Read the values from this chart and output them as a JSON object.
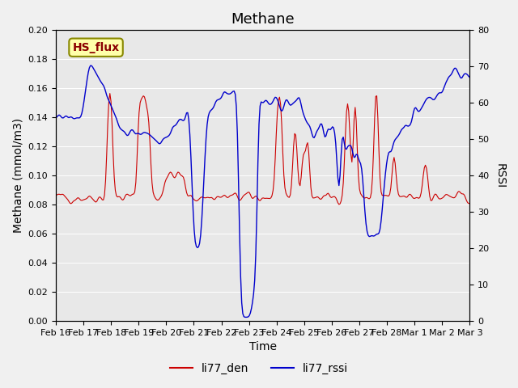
{
  "title": "Methane",
  "xlabel": "Time",
  "ylabel_left": "Methane (mmol/m3)",
  "ylabel_right": "RSSI",
  "ylim_left": [
    0.0,
    0.2
  ],
  "ylim_right": [
    0,
    80
  ],
  "yticks_left": [
    0.0,
    0.02,
    0.04,
    0.06,
    0.08,
    0.1,
    0.12,
    0.14,
    0.16,
    0.18,
    0.2
  ],
  "yticks_right": [
    0,
    10,
    20,
    30,
    40,
    50,
    60,
    70,
    80
  ],
  "xtick_labels": [
    "Feb 16",
    "Feb 17",
    "Feb 18",
    "Feb 19",
    "Feb 20",
    "Feb 21",
    "Feb 22",
    "Feb 23",
    "Feb 24",
    "Feb 25",
    "Feb 26",
    "Feb 27",
    "Feb 28",
    "Mar 1",
    "Mar 2",
    "Mar 3"
  ],
  "color_red": "#cc0000",
  "color_blue": "#0000cc",
  "legend_box_label": "HS_flux",
  "legend_box_facecolor": "#ffffaa",
  "legend_box_edgecolor": "#888800",
  "background_color": "#e8e8e8",
  "plot_background": "#e8e8e8",
  "title_fontsize": 13,
  "axis_label_fontsize": 10,
  "tick_fontsize": 8
}
